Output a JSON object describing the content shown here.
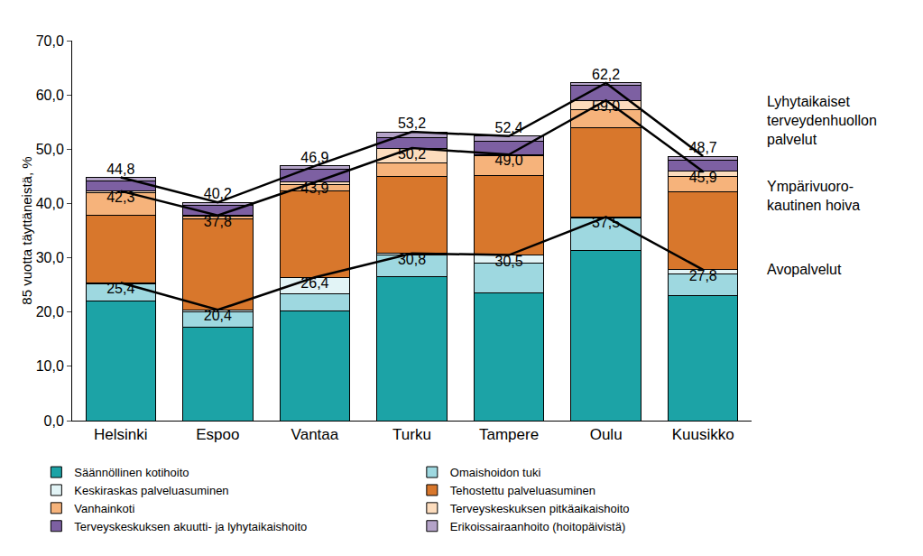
{
  "chart_data": {
    "type": "bar",
    "stacked": true,
    "ylabel": "85 vuotta täyttäneistä, %",
    "categories": [
      "Helsinki",
      "Espoo",
      "Vantaa",
      "Turku",
      "Tampere",
      "Oulu",
      "Kuusikko"
    ],
    "ylim": [
      0,
      70
    ],
    "yticks": [
      {
        "value": 0,
        "label": "0,0"
      },
      {
        "value": 10,
        "label": "10,0"
      },
      {
        "value": 20,
        "label": "20,0"
      },
      {
        "value": 30,
        "label": "30,0"
      },
      {
        "value": 40,
        "label": "40,0"
      },
      {
        "value": 50,
        "label": "50,0"
      },
      {
        "value": 60,
        "label": "60,0"
      },
      {
        "value": 70,
        "label": "70,0"
      }
    ],
    "grid": false,
    "legend": "bottom",
    "data_labels": true,
    "series": [
      {
        "name": "Säännöllinen kotihoito",
        "color": "#1ca3a6",
        "values": [
          22.0,
          17.2,
          20.2,
          26.6,
          23.6,
          31.3,
          23.1
        ]
      },
      {
        "name": "Omaishoidon tuki",
        "color": "#9ed8e0",
        "values": [
          3.2,
          2.9,
          3.2,
          3.9,
          5.4,
          6.0,
          4.0
        ]
      },
      {
        "name": "Keskiraskas palveluasuminen",
        "color": "#e2f4f6",
        "values": [
          0.2,
          0.3,
          3.0,
          0.3,
          1.5,
          0.2,
          0.7
        ]
      },
      {
        "name": "Tehostettu palveluasuminen",
        "color": "#d8772c",
        "values": [
          12.5,
          16.8,
          15.9,
          14.2,
          14.7,
          16.5,
          14.4
        ]
      },
      {
        "name": "Vanhainkoti",
        "color": "#f6b37b",
        "values": [
          4.1,
          0.4,
          1.1,
          2.5,
          3.6,
          3.2,
          2.8
        ]
      },
      {
        "name": "Terveyskeskuksen pitkäaikaishoito",
        "color": "#fcdcbd",
        "values": [
          0.3,
          0.2,
          0.5,
          2.7,
          0.2,
          1.8,
          0.9
        ]
      },
      {
        "name": "Terveyskeskuksen akuutti- ja lyhytaikaishoito",
        "color": "#7d60a2",
        "values": [
          1.9,
          1.8,
          2.4,
          2.0,
          2.5,
          2.8,
          2.0
        ]
      },
      {
        "name": "Erikoissairaanhoito (hoitopäivistä)",
        "color": "#b4a3c8",
        "values": [
          0.6,
          0.6,
          0.6,
          1.0,
          0.9,
          0.4,
          0.8
        ]
      },
      {
        "name": "Avopalvelut",
        "type": "line",
        "color": "#000000",
        "values": [
          25.4,
          20.4,
          26.4,
          30.8,
          30.5,
          37.5,
          27.8
        ],
        "value_labels": [
          "25,4",
          "20,4",
          "26,4",
          "30,8",
          "30,5",
          "37,5",
          "27,8"
        ]
      },
      {
        "name": "Ympärivuoro-\nkautinen hoiva",
        "type": "line",
        "color": "#000000",
        "values": [
          42.3,
          37.8,
          43.9,
          50.2,
          49.0,
          59.0,
          45.9
        ],
        "value_labels": [
          "42,3",
          "37,8",
          "43,9",
          "50,2",
          "49,0",
          "59,0",
          "45,9"
        ]
      },
      {
        "name": "Lyhytaikaiset\nterveydenhuollon\npalvelut",
        "type": "line",
        "color": "#000000",
        "values": [
          44.8,
          40.2,
          46.9,
          53.2,
          52.4,
          62.2,
          48.7
        ],
        "value_labels": [
          "44,8",
          "40,2",
          "46,9",
          "53,2",
          "52,4",
          "62,2",
          "48,7"
        ]
      }
    ]
  }
}
